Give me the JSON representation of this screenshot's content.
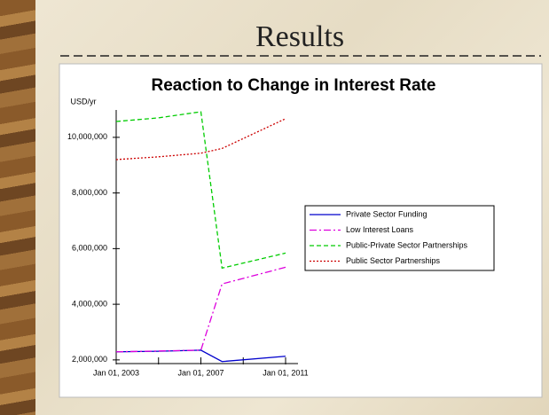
{
  "slide_title": "Results",
  "chart_data": {
    "type": "line",
    "title": "Reaction to Change in Interest Rate",
    "y_axis_label": "USD/yr",
    "x": [
      2003,
      2005,
      2007,
      2008,
      2011
    ],
    "xlim": [
      2003,
      2011
    ],
    "xticks": [
      {
        "value": 2003,
        "label": "Jan 01, 2003"
      },
      {
        "value": 2007,
        "label": "Jan 01, 2007"
      },
      {
        "value": 2011,
        "label": "Jan 01, 2011"
      }
    ],
    "xminorticks": [
      2005,
      2009
    ],
    "ylim": [
      1900000,
      11000000
    ],
    "yticks": [
      {
        "value": 2000000,
        "label": "2,000,000"
      },
      {
        "value": 4000000,
        "label": "4,000,000"
      },
      {
        "value": 6000000,
        "label": "6,000,000"
      },
      {
        "value": 8000000,
        "label": "8,000,000"
      },
      {
        "value": 10000000,
        "label": "10,000,000"
      }
    ],
    "series": [
      {
        "name": "Private Sector Funding",
        "color": "#0000cc",
        "dash": "",
        "values": [
          2290000,
          2310000,
          2350000,
          1940000,
          2130000
        ]
      },
      {
        "name": "Low Interest Loans",
        "color": "#dd00dd",
        "dash": "8 3 2 3",
        "values": [
          2290000,
          2320000,
          2350000,
          4730000,
          5330000
        ]
      },
      {
        "name": "Public-Private Sector Partnerships",
        "color": "#00cc00",
        "dash": "5 3",
        "values": [
          10570000,
          10700000,
          10920000,
          5300000,
          5840000
        ]
      },
      {
        "name": "Public Sector Partnerships",
        "color": "#cc0000",
        "dash": "2 2",
        "values": [
          9200000,
          9300000,
          9430000,
          9600000,
          10670000
        ]
      }
    ]
  }
}
